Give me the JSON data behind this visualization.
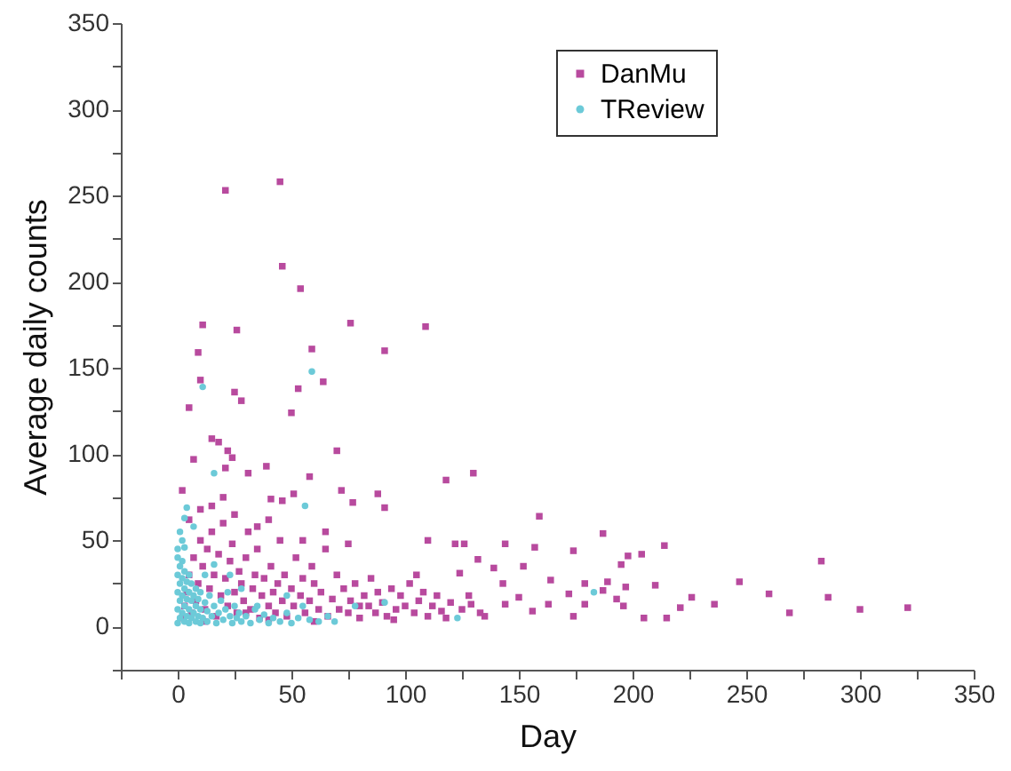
{
  "chart_data": {
    "type": "scatter",
    "xlabel": "Day",
    "ylabel": "Average daily counts",
    "xlim": [
      -25,
      350
    ],
    "ylim": [
      -25,
      350
    ],
    "xticks": [
      {
        "value": -25,
        "label": null
      },
      0,
      {
        "value": 25,
        "label": null
      },
      50,
      {
        "value": 75,
        "label": null
      },
      100,
      {
        "value": 125,
        "label": null
      },
      150,
      {
        "value": 175,
        "label": null
      },
      200,
      {
        "value": 225,
        "label": null
      },
      250,
      {
        "value": 275,
        "label": null
      },
      300,
      {
        "value": 325,
        "label": null
      },
      350
    ],
    "yticks": [
      {
        "value": -25,
        "label": null
      },
      0,
      {
        "value": 25,
        "label": null
      },
      50,
      {
        "value": 75,
        "label": null
      },
      100,
      {
        "value": 125,
        "label": null
      },
      150,
      {
        "value": 175,
        "label": null
      },
      200,
      {
        "value": 225,
        "label": null
      },
      250,
      {
        "value": 275,
        "label": null
      },
      300,
      {
        "value": 325,
        "label": null
      },
      350
    ],
    "grid": false,
    "legend": "top right",
    "series": [
      {
        "name": "DanMu",
        "color": "#b84a9e",
        "marker": "square",
        "x": [
          45,
          21,
          46,
          54,
          11,
          26,
          76,
          109,
          59,
          9,
          91,
          10,
          64,
          53,
          25,
          28,
          50,
          5,
          15,
          18,
          70,
          22,
          24,
          7,
          39,
          21,
          118,
          130,
          31,
          58,
          2,
          72,
          88,
          51,
          46,
          41,
          77,
          91,
          159,
          187,
          214,
          204,
          283,
          144,
          157,
          174,
          110,
          122,
          126,
          247,
          260,
          286,
          269,
          300,
          321,
          236,
          226,
          221,
          215,
          205,
          210,
          196,
          193,
          197,
          195,
          198,
          189,
          187,
          179,
          179,
          172,
          174,
          163,
          164,
          156,
          152,
          150,
          144,
          143,
          139,
          132,
          135,
          124,
          129,
          2,
          3,
          4,
          5,
          6,
          7,
          8,
          9,
          10,
          11,
          12,
          13,
          14,
          15,
          16,
          17,
          18,
          19,
          20,
          21,
          22,
          23,
          24,
          25,
          26,
          27,
          28,
          29,
          30,
          31,
          32,
          33,
          34,
          35,
          36,
          37,
          38,
          40,
          41,
          42,
          43,
          44,
          45,
          46,
          47,
          48,
          50,
          51,
          52,
          54,
          55,
          56,
          58,
          59,
          60,
          62,
          63,
          65,
          66,
          68,
          70,
          71,
          73,
          75,
          76,
          78,
          80,
          82,
          84,
          85,
          87,
          88,
          90,
          92,
          94,
          96,
          98,
          100,
          102,
          104,
          106,
          108,
          110,
          112,
          114,
          116,
          118,
          120,
          125,
          128,
          133,
          20,
          10,
          25,
          5,
          35,
          15,
          40,
          55,
          65,
          75,
          30,
          12,
          40,
          60,
          80,
          95,
          105
        ],
        "values": [
          258,
          253,
          209,
          196,
          175,
          172,
          176,
          174,
          161,
          159,
          160,
          143,
          142,
          138,
          136,
          131,
          124,
          127,
          109,
          107,
          102,
          102,
          98,
          97,
          93,
          92,
          85,
          89,
          89,
          87,
          79,
          79,
          77,
          77,
          73,
          74,
          72,
          69,
          64,
          54,
          47,
          42,
          38,
          48,
          46,
          44,
          50,
          48,
          48,
          26,
          19,
          17,
          8,
          10,
          11,
          13,
          17,
          11,
          5,
          5,
          24,
          12,
          16,
          23,
          36,
          41,
          26,
          21,
          25,
          13,
          19,
          6,
          13,
          27,
          9,
          35,
          17,
          13,
          25,
          34,
          39,
          6,
          31,
          13,
          5,
          12,
          20,
          30,
          8,
          40,
          15,
          25,
          50,
          35,
          10,
          45,
          22,
          55,
          30,
          6,
          42,
          18,
          60,
          28,
          12,
          38,
          48,
          20,
          8,
          32,
          25,
          15,
          40,
          55,
          10,
          22,
          30,
          45,
          5,
          18,
          28,
          12,
          35,
          20,
          8,
          25,
          50,
          15,
          30,
          6,
          22,
          12,
          40,
          18,
          28,
          8,
          15,
          35,
          25,
          10,
          20,
          45,
          6,
          16,
          30,
          10,
          22,
          8,
          15,
          25,
          5,
          18,
          12,
          28,
          8,
          20,
          14,
          6,
          22,
          10,
          18,
          12,
          25,
          8,
          15,
          20,
          6,
          12,
          18,
          9,
          5,
          14,
          10,
          18,
          8,
          75,
          68,
          65,
          62,
          58,
          70,
          62,
          50,
          55,
          48,
          8,
          3,
          4,
          3,
          12,
          4,
          30
        ]
      },
      {
        "name": "TReview",
        "color": "#6ccad8",
        "marker": "circle",
        "x": [
          59,
          11,
          16,
          56,
          4,
          3,
          7,
          183,
          123,
          91,
          78,
          69,
          0,
          0,
          0,
          0,
          0,
          0,
          1,
          1,
          1,
          1,
          2,
          2,
          2,
          2,
          3,
          3,
          3,
          3,
          4,
          4,
          4,
          5,
          5,
          5,
          5,
          6,
          6,
          6,
          7,
          7,
          8,
          8,
          8,
          9,
          9,
          10,
          10,
          10,
          11,
          12,
          13,
          13,
          14,
          15,
          16,
          17,
          18,
          19,
          20,
          21,
          22,
          23,
          24,
          25,
          26,
          27,
          28,
          30,
          32,
          34,
          36,
          38,
          40,
          42,
          45,
          48,
          50,
          53,
          55,
          58,
          62,
          66,
          16,
          12,
          23,
          2,
          1,
          3,
          28,
          48,
          35
        ],
        "values": [
          148,
          139,
          89,
          70,
          69,
          63,
          58,
          20,
          5,
          14,
          12,
          3,
          2,
          10,
          20,
          30,
          40,
          45,
          5,
          15,
          25,
          35,
          8,
          18,
          28,
          38,
          3,
          12,
          22,
          32,
          6,
          16,
          26,
          2,
          10,
          20,
          30,
          5,
          15,
          25,
          8,
          18,
          3,
          12,
          22,
          6,
          16,
          2,
          10,
          20,
          5,
          14,
          3,
          9,
          18,
          6,
          12,
          2,
          8,
          15,
          4,
          10,
          20,
          6,
          2,
          12,
          5,
          8,
          3,
          6,
          2,
          10,
          4,
          7,
          2,
          5,
          3,
          8,
          2,
          5,
          12,
          4,
          3,
          6,
          36,
          30,
          30,
          50,
          55,
          46,
          22,
          18,
          12
        ]
      }
    ]
  }
}
